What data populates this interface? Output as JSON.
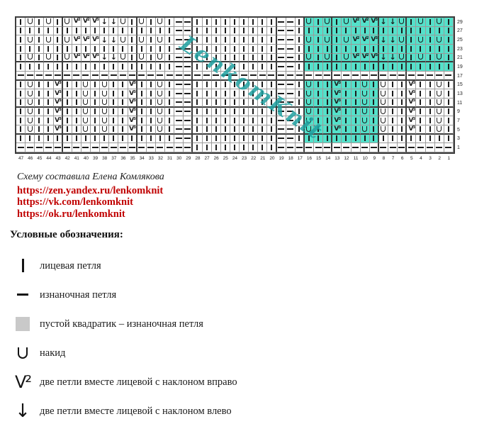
{
  "page": {
    "background": "#ffffff"
  },
  "watermark": {
    "text": "LenkomKnit",
    "color": "#1fa0a0"
  },
  "chart": {
    "stitch_color": "#1c1c1c",
    "grid_line_color": "#9a9a9a",
    "grid_bold_color": "#3d3d3d",
    "highlight_color": "#54e1ca",
    "row_numbers": [
      29,
      27,
      25,
      23,
      21,
      19,
      17,
      15,
      13,
      11,
      9,
      7,
      5,
      3,
      1
    ],
    "col_numbers": [
      47,
      46,
      45,
      44,
      43,
      42,
      41,
      40,
      39,
      38,
      37,
      36,
      35,
      34,
      33,
      32,
      31,
      30,
      29,
      28,
      27,
      26,
      25,
      24,
      23,
      22,
      21,
      20,
      19,
      18,
      17,
      16,
      15,
      14,
      13,
      12,
      11,
      10,
      9,
      8,
      7,
      6,
      5,
      4,
      3,
      2,
      1
    ],
    "rows": [
      "iuiuiu223aauiuiui--iiiiiiiii--iuiuiu223aauiuiui",
      "iiiiiiiiiiiiiiiii--iiiiiiiii--iiiiiiiiiiiiiiiii",
      "iuiuiu223aauiuiui--iiiiiiiii--iuiuiu223aauiuiui",
      "iiiiiiiiiiiiiiiii--iiiiiiiii--iiiiiiiiiiiiiiiii",
      "iuiuiu223aauiuiui--iiiiiiiii--iuiuiu223aauiuiui",
      "iiiiiiiiiiiiiiiii--iiiiiiiii--iiiiiiiiiiiiiiiii",
      "-----------------------------------------------",
      "iuii3iiuiuii3iiui--iiiiiiiii--iuii3iiuiuii3iiui",
      "iuii3iiuiuii3iiui--iiiiiiiii--iuii3iiuiuii3iiui",
      "iuii3iiuiuii3iiui--iiiiiiiii--iuii3iiuiuii3iiui",
      "iuii3iiuiuii3iiui--iiiiiiiii--iuii3iiuiuii3iiui",
      "iuii3iiuiuii3iiui--iiiiiiiii--iuii3iiuiuii3iiui",
      "iuii3iiuiuii3iiui--iiiiiiiii--iuii3iiuiuii3iiui",
      "iiiiiiiiiiiiiiiii--iiiiiiiii--iiiiiiiiiiiiiiiii",
      "-------------------iiiiiiiii-------------------"
    ],
    "highlights": [
      {
        "row_start": 0,
        "row_end": 5,
        "col_start": 31,
        "col_end": 46
      },
      {
        "row_start": 7,
        "row_end": 13,
        "col_start": 31,
        "col_end": 38
      }
    ],
    "bold_after_cols": [
      4,
      12,
      18,
      27,
      30,
      33,
      38,
      41
    ],
    "bold_after_rows": [
      4,
      6,
      9,
      12
    ]
  },
  "credit": {
    "author": "Схему составила Елена Комлякова",
    "links": [
      "https://zen.yandex.ru/lenkomknit",
      "https://vk.com/lenkomknit",
      "https://ok.ru/lenkomknit"
    ],
    "link_color": "#c00000"
  },
  "legend": {
    "title": "Условные обозначения:",
    "items": [
      {
        "code": "i",
        "label": "лицевая петля"
      },
      {
        "code": "p",
        "label": "изнаночная петля"
      },
      {
        "code": "sq",
        "label": "пустой квадратик – изнаночная петля"
      },
      {
        "code": "u",
        "label": "накид"
      },
      {
        "code": "2",
        "label": "две петли вместе лицевой с наклоном вправо"
      },
      {
        "code": "a",
        "label": "две петли вместе лицевой с наклоном влево"
      }
    ]
  }
}
